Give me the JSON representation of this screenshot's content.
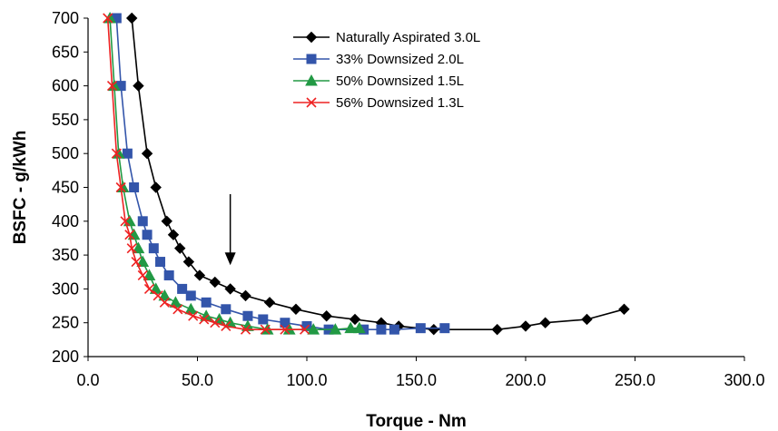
{
  "chart_data": {
    "type": "line",
    "title": "",
    "xlabel": "Torque - Nm",
    "ylabel": "BSFC - g/kWh",
    "xlim": [
      0,
      300
    ],
    "ylim": [
      200,
      700
    ],
    "x_ticks": [
      "0.0",
      "50.0",
      "100.0",
      "150.0",
      "200.0",
      "250.0",
      "300.0"
    ],
    "y_ticks": [
      "200",
      "250",
      "300",
      "350",
      "400",
      "450",
      "500",
      "550",
      "600",
      "650",
      "700"
    ],
    "grid": false,
    "legend_position": "top-right",
    "annotation": "downward arrow near x=65",
    "arrow": {
      "x": 65,
      "y_top": 440,
      "y_bottom": 335
    },
    "series": [
      {
        "name": "Naturally Aspirated 3.0L",
        "color": "#000000",
        "marker": "diamond",
        "points": [
          [
            20,
            700
          ],
          [
            23,
            600
          ],
          [
            27,
            500
          ],
          [
            31,
            450
          ],
          [
            36,
            400
          ],
          [
            39,
            380
          ],
          [
            42,
            360
          ],
          [
            46,
            340
          ],
          [
            51,
            320
          ],
          [
            58,
            310
          ],
          [
            65,
            300
          ],
          [
            72,
            290
          ],
          [
            83,
            280
          ],
          [
            95,
            270
          ],
          [
            109,
            260
          ],
          [
            122,
            255
          ],
          [
            134,
            250
          ],
          [
            142,
            245
          ],
          [
            158,
            240
          ],
          [
            187,
            240
          ],
          [
            200,
            245
          ],
          [
            209,
            250
          ],
          [
            228,
            255
          ],
          [
            245,
            270
          ]
        ]
      },
      {
        "name": "33% Downsized 2.0L",
        "color": "#3355aa",
        "marker": "square",
        "points": [
          [
            13,
            700
          ],
          [
            15,
            600
          ],
          [
            18,
            500
          ],
          [
            21,
            450
          ],
          [
            25,
            400
          ],
          [
            27,
            380
          ],
          [
            30,
            360
          ],
          [
            33,
            340
          ],
          [
            37,
            320
          ],
          [
            43,
            300
          ],
          [
            47,
            290
          ],
          [
            54,
            280
          ],
          [
            63,
            270
          ],
          [
            73,
            260
          ],
          [
            80,
            255
          ],
          [
            90,
            250
          ],
          [
            100,
            245
          ],
          [
            110,
            240
          ],
          [
            126,
            240
          ],
          [
            134,
            240
          ],
          [
            140,
            240
          ],
          [
            152,
            242
          ],
          [
            163,
            242
          ]
        ]
      },
      {
        "name": "50% Downsized 1.5L",
        "color": "#229944",
        "marker": "triangle",
        "points": [
          [
            10,
            700
          ],
          [
            12,
            600
          ],
          [
            14,
            500
          ],
          [
            16,
            450
          ],
          [
            19,
            400
          ],
          [
            21,
            380
          ],
          [
            23,
            360
          ],
          [
            25,
            340
          ],
          [
            28,
            320
          ],
          [
            31,
            300
          ],
          [
            35,
            290
          ],
          [
            40,
            280
          ],
          [
            47,
            270
          ],
          [
            54,
            260
          ],
          [
            60,
            255
          ],
          [
            65,
            250
          ],
          [
            73,
            245
          ],
          [
            82,
            240
          ],
          [
            92,
            240
          ],
          [
            103,
            240
          ],
          [
            113,
            240
          ],
          [
            120,
            242
          ],
          [
            124,
            242
          ]
        ]
      },
      {
        "name": "56% Downsized 1.3L",
        "color": "#ee2222",
        "marker": "x",
        "points": [
          [
            9,
            700
          ],
          [
            11,
            600
          ],
          [
            13,
            500
          ],
          [
            15,
            450
          ],
          [
            17,
            400
          ],
          [
            19,
            380
          ],
          [
            20,
            360
          ],
          [
            22,
            340
          ],
          [
            25,
            320
          ],
          [
            28,
            300
          ],
          [
            32,
            290
          ],
          [
            35,
            280
          ],
          [
            41,
            270
          ],
          [
            48,
            260
          ],
          [
            53,
            255
          ],
          [
            58,
            250
          ],
          [
            63,
            245
          ],
          [
            72,
            240
          ],
          [
            81,
            240
          ],
          [
            90,
            240
          ],
          [
            99,
            240
          ]
        ]
      }
    ]
  }
}
